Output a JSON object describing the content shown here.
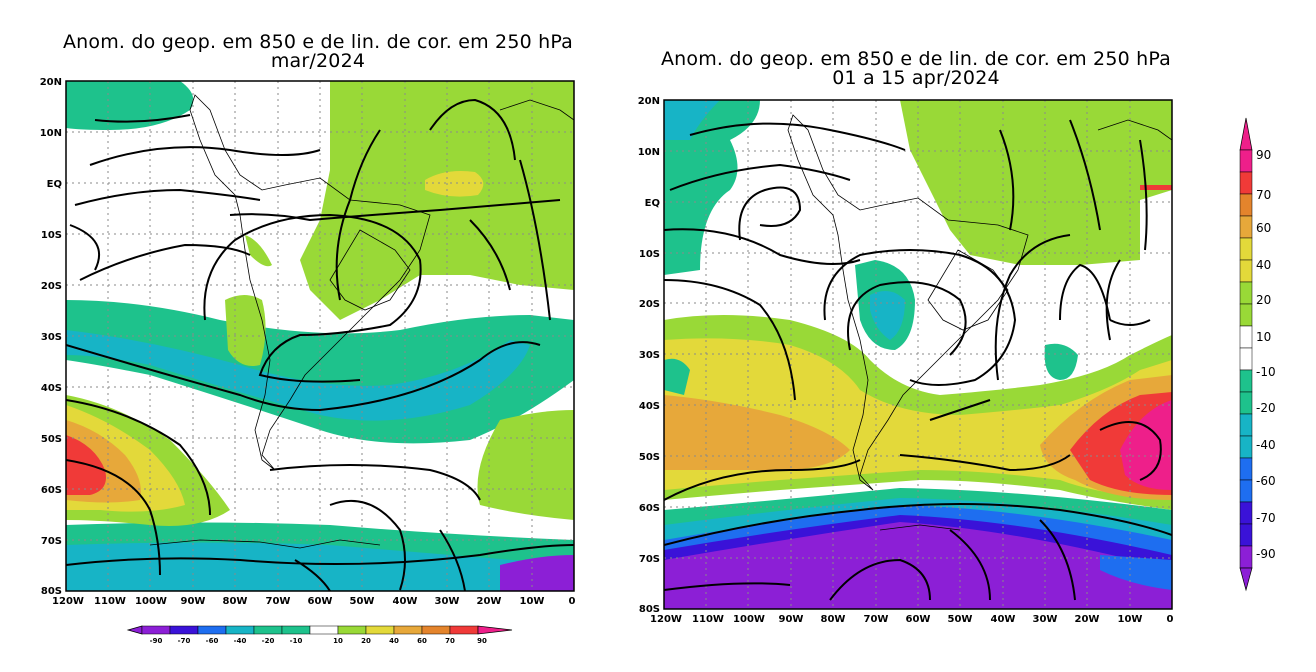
{
  "panels": [
    {
      "title_line1": "Anom. do geop. em 850 e de lin. de cor. em 250 hPa",
      "title_line2": "mar/2024",
      "lat_labels": [
        "20N",
        "10N",
        "EQ",
        "10S",
        "20S",
        "30S",
        "40S",
        "50S",
        "60S",
        "70S",
        "80S"
      ],
      "lon_labels": [
        "120W",
        "110W",
        "100W",
        "90W",
        "80W",
        "70W",
        "60W",
        "50W",
        "40W",
        "30W",
        "20W",
        "10W",
        "0"
      ]
    },
    {
      "title_line1": "Anom. do geop. em 850 e de lin. de cor. em 250 hPa",
      "title_line2": "01 a 15 apr/2024",
      "lat_labels": [
        "20N",
        "10N",
        "EQ",
        "10S",
        "20S",
        "30S",
        "40S",
        "50S",
        "60S",
        "70S",
        "80S"
      ],
      "lon_labels": [
        "120W",
        "110W",
        "100W",
        "90W",
        "80W",
        "70W",
        "60W",
        "50W",
        "40W",
        "30W",
        "20W",
        "10W",
        "0"
      ]
    }
  ],
  "colorbar_horizontal": {
    "labels": [
      "-90",
      "-70",
      "-60",
      "-40",
      "-20",
      "-10",
      "10",
      "20",
      "40",
      "60",
      "70",
      "90"
    ]
  },
  "colorbar_vertical": {
    "labels": [
      "90",
      "70",
      "60",
      "40",
      "20",
      "10",
      "-10",
      "-20",
      "-40",
      "-60",
      "-70",
      "-90"
    ]
  },
  "palette": {
    "m90": "#8c1fd6",
    "m70": "#3a12d8",
    "m60": "#1e6ef0",
    "m40": "#17b4c6",
    "m20": "#1ec28c",
    "m10": "#ffffff",
    "p10": "#99d937",
    "p20": "#e3d93a",
    "p40": "#e7a83a",
    "p60": "#e4842c",
    "p70": "#f03a38",
    "p90": "#ee1f8a"
  }
}
